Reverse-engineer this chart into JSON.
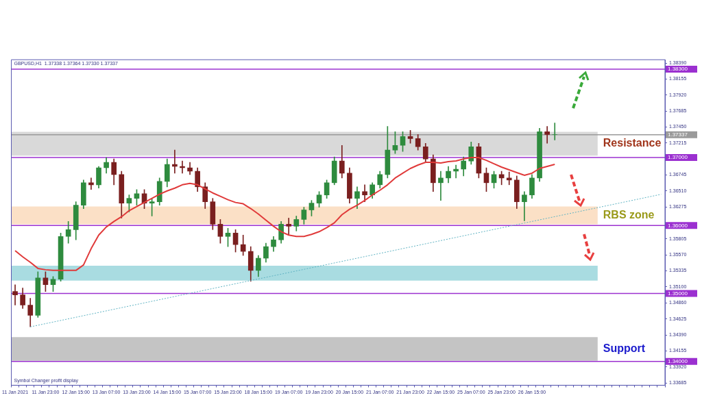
{
  "chart_data": {
    "type": "candlestick",
    "title": "GBPUSD,H1  1.37338 1.37364 1.37330 1.37337",
    "categories": [
      "11 Jan 2021",
      null,
      null,
      null,
      "11 Jan 23:00",
      null,
      null,
      null,
      "12 Jan 15:00",
      null,
      null,
      null,
      "13 Jan 07:00",
      null,
      null,
      null,
      "13 Jan 23:00",
      null,
      null,
      null,
      "14 Jan 15:00",
      null,
      null,
      null,
      "15 Jan 07:00",
      null,
      null,
      null,
      "15 Jan 23:00",
      null,
      null,
      null,
      "18 Jan 15:00",
      null,
      null,
      null,
      "19 Jan 07:00",
      null,
      null,
      null,
      "19 Jan 23:00",
      null,
      null,
      null,
      "20 Jan 15:00",
      null,
      null,
      null,
      "21 Jan 07:00",
      null,
      null,
      null,
      "21 Jan 23:00",
      null,
      null,
      null,
      "22 Jan 15:00",
      null,
      null,
      null,
      "25 Jan 07:00",
      null,
      null,
      null,
      "25 Jan 23:00",
      null,
      null,
      null,
      "26 Jan 15:00",
      null,
      null,
      null,
      null,
      null,
      null,
      null,
      null,
      null,
      null,
      null,
      null,
      null,
      null,
      null,
      null,
      null
    ],
    "ohlc": [
      [
        1.3503,
        1.3513,
        1.3483,
        1.3498
      ],
      [
        1.3498,
        1.3508,
        1.3478,
        1.3483
      ],
      [
        1.3483,
        1.3493,
        1.3451,
        1.3468
      ],
      [
        1.3468,
        1.3532,
        1.3465,
        1.3523
      ],
      [
        1.3523,
        1.3532,
        1.3503,
        1.3513
      ],
      [
        1.3513,
        1.3525,
        1.3503,
        1.3521
      ],
      [
        1.3521,
        1.3589,
        1.3518,
        1.3584
      ],
      [
        1.3584,
        1.3606,
        1.3574,
        1.3594
      ],
      [
        1.3594,
        1.3635,
        1.3579,
        1.363
      ],
      [
        1.363,
        1.3667,
        1.3625,
        1.3663
      ],
      [
        1.3663,
        1.367,
        1.3653,
        1.366
      ],
      [
        1.366,
        1.3687,
        1.3655,
        1.3685
      ],
      [
        1.3685,
        1.37,
        1.3677,
        1.3693
      ],
      [
        1.3693,
        1.3698,
        1.366,
        1.3675
      ],
      [
        1.3675,
        1.368,
        1.3611,
        1.3633
      ],
      [
        1.3633,
        1.3645,
        1.362,
        1.364
      ],
      [
        1.364,
        1.3653,
        1.363,
        1.3647
      ],
      [
        1.3647,
        1.3653,
        1.3625,
        1.3633
      ],
      [
        1.3633,
        1.364,
        1.3614,
        1.3635
      ],
      [
        1.3635,
        1.367,
        1.363,
        1.3665
      ],
      [
        1.3665,
        1.3698,
        1.3657,
        1.369
      ],
      [
        1.369,
        1.3711,
        1.3677,
        1.3687
      ],
      [
        1.3687,
        1.3695,
        1.3677,
        1.3685
      ],
      [
        1.3685,
        1.3693,
        1.3675,
        1.368
      ],
      [
        1.368,
        1.3685,
        1.365,
        1.3657
      ],
      [
        1.3657,
        1.3663,
        1.3625,
        1.3635
      ],
      [
        1.3635,
        1.364,
        1.3594,
        1.3602
      ],
      [
        1.3602,
        1.3609,
        1.3574,
        1.3584
      ],
      [
        1.3584,
        1.3596,
        1.3569,
        1.3589
      ],
      [
        1.3589,
        1.3594,
        1.3561,
        1.3572
      ],
      [
        1.3572,
        1.3586,
        1.3556,
        1.3562
      ],
      [
        1.3562,
        1.3569,
        1.3518,
        1.3534
      ],
      [
        1.3534,
        1.3556,
        1.3525,
        1.3552
      ],
      [
        1.3552,
        1.3574,
        1.3546,
        1.3569
      ],
      [
        1.3569,
        1.3584,
        1.3562,
        1.3579
      ],
      [
        1.3579,
        1.3606,
        1.3574,
        1.3602
      ],
      [
        1.3602,
        1.3611,
        1.3586,
        1.3599
      ],
      [
        1.3599,
        1.3614,
        1.3592,
        1.3609
      ],
      [
        1.3609,
        1.3627,
        1.3602,
        1.3623
      ],
      [
        1.3623,
        1.3637,
        1.3614,
        1.3633
      ],
      [
        1.3633,
        1.365,
        1.3627,
        1.3645
      ],
      [
        1.3645,
        1.3667,
        1.364,
        1.3663
      ],
      [
        1.3663,
        1.3701,
        1.366,
        1.3695
      ],
      [
        1.3695,
        1.3718,
        1.367,
        1.3677
      ],
      [
        1.3677,
        1.3685,
        1.3633,
        1.364
      ],
      [
        1.364,
        1.3657,
        1.3625,
        1.365
      ],
      [
        1.365,
        1.366,
        1.3635,
        1.3645
      ],
      [
        1.3645,
        1.3663,
        1.364,
        1.366
      ],
      [
        1.366,
        1.368,
        1.3655,
        1.3675
      ],
      [
        1.3675,
        1.3746,
        1.367,
        1.3711
      ],
      [
        1.3711,
        1.3738,
        1.3706,
        1.3718
      ],
      [
        1.3718,
        1.3738,
        1.3709,
        1.3731
      ],
      [
        1.3731,
        1.374,
        1.3721,
        1.3728
      ],
      [
        1.3728,
        1.3734,
        1.3711,
        1.3716
      ],
      [
        1.3716,
        1.3721,
        1.3693,
        1.3698
      ],
      [
        1.3698,
        1.3704,
        1.365,
        1.3663
      ],
      [
        1.3663,
        1.368,
        1.3637,
        1.367
      ],
      [
        1.367,
        1.3687,
        1.3663,
        1.368
      ],
      [
        1.368,
        1.3689,
        1.367,
        1.3683
      ],
      [
        1.3683,
        1.3701,
        1.3673,
        1.3695
      ],
      [
        1.3695,
        1.3723,
        1.369,
        1.3716
      ],
      [
        1.3716,
        1.3721,
        1.367,
        1.3677
      ],
      [
        1.3677,
        1.3685,
        1.365,
        1.3663
      ],
      [
        1.3663,
        1.368,
        1.3655,
        1.3675
      ],
      [
        1.3675,
        1.368,
        1.366,
        1.367
      ],
      [
        1.367,
        1.3679,
        1.366,
        1.3667
      ],
      [
        1.3667,
        1.3673,
        1.3625,
        1.3635
      ],
      [
        1.3635,
        1.365,
        1.3607,
        1.3645
      ],
      [
        1.3645,
        1.3675,
        1.364,
        1.367
      ],
      [
        1.367,
        1.3743,
        1.3665,
        1.3738
      ],
      [
        1.3738,
        1.3746,
        1.3721,
        1.3734
      ],
      [
        1.3734,
        1.3751,
        1.3726,
        1.3734
      ],
      null,
      null,
      null,
      null,
      null,
      null,
      null,
      null,
      null,
      null,
      null,
      null,
      null,
      null
    ],
    "series": [
      {
        "type": "line",
        "color": "#e03a3a",
        "values": [
          1.3563,
          1.3554,
          1.3546,
          1.3537,
          1.3535,
          1.3534,
          1.3534,
          1.3534,
          1.3534,
          1.3542,
          1.3566,
          1.3586,
          1.3598,
          1.3606,
          1.3613,
          1.3622,
          1.3628,
          1.3634,
          1.364,
          1.3646,
          1.3651,
          1.3655,
          1.366,
          1.3662,
          1.366,
          1.3654,
          1.3648,
          1.3643,
          1.3638,
          1.3634,
          1.3632,
          1.3625,
          1.3617,
          1.3608,
          1.3599,
          1.3591,
          1.3586,
          1.3584,
          1.3584,
          1.3587,
          1.3591,
          1.3597,
          1.3604,
          1.3616,
          1.3624,
          1.363,
          1.3637,
          1.3645,
          1.3652,
          1.366,
          1.367,
          1.3677,
          1.3684,
          1.3689,
          1.3693,
          1.3693,
          1.3692,
          1.3694,
          1.3695,
          1.3698,
          1.37,
          1.37,
          1.3696,
          1.3691,
          1.3686,
          1.3682,
          1.3678,
          1.3674,
          1.3677,
          1.3684,
          1.3687,
          1.369,
          null,
          null,
          null,
          null,
          null,
          null,
          null,
          null,
          null,
          null,
          null,
          null,
          null,
          null
        ]
      },
      {
        "type": "line",
        "color": "#5fb3c3",
        "line_style": "dotted",
        "values": [
          null,
          null,
          1.3451,
          null,
          null,
          null,
          null,
          null,
          null,
          null,
          null,
          null,
          null,
          null,
          null,
          null,
          null,
          null,
          null,
          null,
          null,
          null,
          null,
          null,
          null,
          null,
          null,
          null,
          null,
          null,
          null,
          null,
          null,
          null,
          null,
          null,
          null,
          null,
          null,
          null,
          null,
          null,
          null,
          null,
          null,
          null,
          null,
          null,
          null,
          null,
          null,
          null,
          null,
          null,
          null,
          null,
          null,
          null,
          null,
          null,
          null,
          null,
          null,
          null,
          null,
          null,
          null,
          null,
          null,
          null,
          null,
          null,
          null,
          null,
          null,
          null,
          null,
          null,
          null,
          null,
          null,
          null,
          null,
          null,
          null,
          1.3646
        ]
      }
    ],
    "ylim": [
      1.3365,
      1.3844
    ],
    "yticks": [
      1.33685,
      {
        "value": 1.3392,
        "label": "1.33920"
      },
      1.34155,
      {
        "value": 1.3439,
        "label": "1.34390"
      },
      1.34625,
      {
        "value": 1.3486,
        "label": "1.34860"
      },
      {
        "value": 1.351,
        "label": "1.35100"
      },
      1.35335,
      {
        "value": 1.3557,
        "label": "1.35570"
      },
      1.35805,
      1.36275,
      {
        "value": 1.3651,
        "label": "1.36510"
      },
      1.36745,
      1.37215,
      {
        "value": 1.3745,
        "label": "1.37450"
      },
      1.37685,
      {
        "value": 1.3792,
        "label": "1.37920"
      },
      1.38155,
      {
        "value": 1.3839,
        "label": "1.38390"
      }
    ],
    "ref_lines": [
      {
        "axis": "y",
        "value": 1.383,
        "label": "1.38300",
        "color": "#9b30d0"
      },
      {
        "axis": "y",
        "value": 1.37337,
        "label": "1.37337",
        "color": "#9a9a9a"
      },
      {
        "axis": "y",
        "value": 1.37,
        "label": "1.37000",
        "color": "#9b30d0"
      },
      {
        "axis": "y",
        "value": 1.36,
        "label": "1.36000",
        "color": "#9b30d0"
      },
      {
        "axis": "y",
        "value": 1.35,
        "label": "1.35000",
        "color": "#9b30d0"
      },
      {
        "axis": "y",
        "value": 1.34,
        "label": "1.34000",
        "color": "#9b30d0"
      }
    ],
    "bands": [
      {
        "axis": "y",
        "from": 1.3703,
        "to": 1.3738,
        "label": "Resistance",
        "color": "#d9d9d9"
      },
      {
        "axis": "y",
        "from": 1.3602,
        "to": 1.3628,
        "label": "RBS zone",
        "color": "#fbe0c6"
      },
      {
        "axis": "y",
        "from": 1.3519,
        "to": 1.3541,
        "color": "#a9dce1"
      },
      {
        "axis": "y",
        "from": 1.3401,
        "to": 1.3436,
        "label": "Support",
        "color": "#c4c4c4"
      }
    ],
    "annotations": [
      "Symbol Changer profit display"
    ],
    "legend": false
  }
}
